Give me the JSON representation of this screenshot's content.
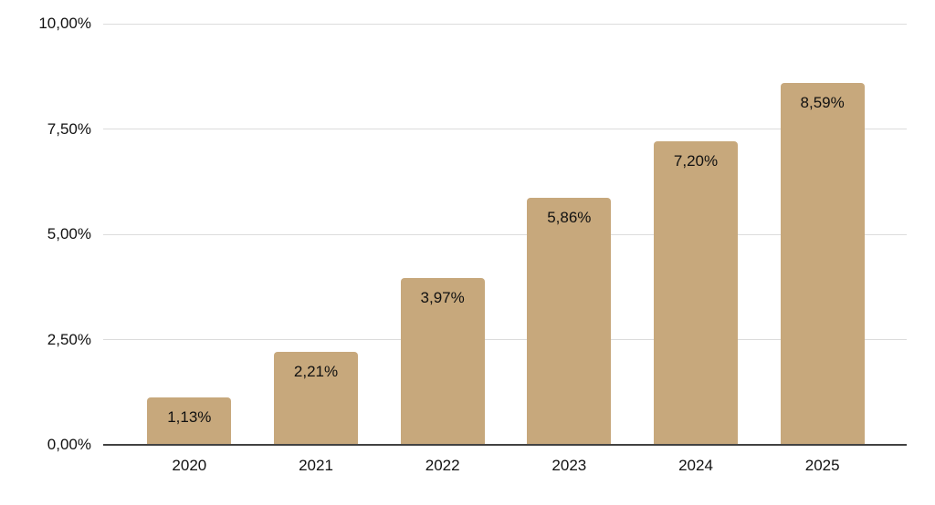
{
  "chart_data": {
    "type": "bar",
    "title": "",
    "xlabel": "",
    "ylabel": "",
    "categories": [
      "2020",
      "2021",
      "2022",
      "2023",
      "2024",
      "2025"
    ],
    "values": [
      1.13,
      2.21,
      3.97,
      5.86,
      7.2,
      8.59
    ],
    "value_labels": [
      "1,13%",
      "2,21%",
      "3,97%",
      "5,86%",
      "7,20%",
      "8,59%"
    ],
    "y_ticks": [
      0,
      2.5,
      5,
      7.5,
      10
    ],
    "y_tick_labels": [
      "0,00%",
      "2,50%",
      "5,00%",
      "7,50%",
      "10,00%"
    ],
    "ylim": [
      0,
      10
    ],
    "grid": true,
    "legend": "none",
    "colors": {
      "bar_fill": "#C7A87C",
      "gridline": "#DCDCDC",
      "axis_line": "#424242",
      "text": "#111111",
      "background": "#FFFFFF"
    }
  }
}
